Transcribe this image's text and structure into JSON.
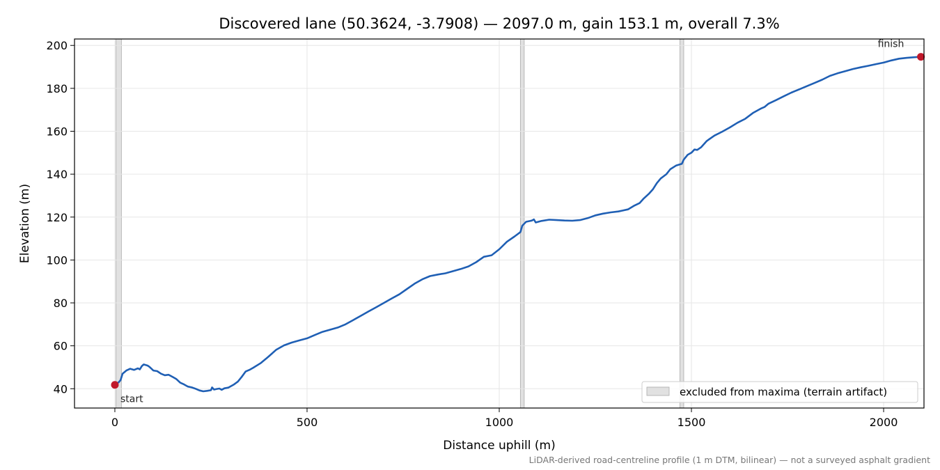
{
  "chart_data": {
    "type": "line",
    "title": "Discovered lane (50.3624, -3.7908) — 2097.0 m, gain 153.1 m, overall 7.3%",
    "xlabel": "Distance uphill (m)",
    "ylabel": "Elevation (m)",
    "xlim": [
      -105,
      2105
    ],
    "ylim": [
      31,
      203
    ],
    "xticks": [
      0,
      500,
      1000,
      1500,
      2000
    ],
    "yticks": [
      40,
      60,
      80,
      100,
      120,
      140,
      160,
      180,
      200
    ],
    "grid": true,
    "series": [
      {
        "name": "",
        "color": "#1f5fb4",
        "points": [
          [
            0,
            41.8
          ],
          [
            10,
            43
          ],
          [
            15,
            44
          ],
          [
            20,
            47
          ],
          [
            30,
            48.5
          ],
          [
            40,
            49.3
          ],
          [
            50,
            48.8
          ],
          [
            60,
            49.5
          ],
          [
            65,
            49
          ],
          [
            70,
            50.5
          ],
          [
            75,
            51.3
          ],
          [
            85,
            50.8
          ],
          [
            90,
            50.2
          ],
          [
            100,
            48.5
          ],
          [
            110,
            48.2
          ],
          [
            120,
            47
          ],
          [
            130,
            46.3
          ],
          [
            140,
            46.5
          ],
          [
            150,
            45.5
          ],
          [
            160,
            44.5
          ],
          [
            170,
            42.8
          ],
          [
            180,
            42
          ],
          [
            190,
            41
          ],
          [
            200,
            40.6
          ],
          [
            210,
            40
          ],
          [
            220,
            39.2
          ],
          [
            230,
            38.8
          ],
          [
            240,
            39
          ],
          [
            250,
            39.3
          ],
          [
            253,
            40.6
          ],
          [
            258,
            39.6
          ],
          [
            265,
            39.9
          ],
          [
            272,
            40.1
          ],
          [
            278,
            39.5
          ],
          [
            285,
            40.2
          ],
          [
            295,
            40.5
          ],
          [
            310,
            42
          ],
          [
            320,
            43.3
          ],
          [
            330,
            45.5
          ],
          [
            340,
            48
          ],
          [
            350,
            48.8
          ],
          [
            360,
            49.8
          ],
          [
            380,
            52
          ],
          [
            400,
            55
          ],
          [
            420,
            58.2
          ],
          [
            440,
            60.2
          ],
          [
            460,
            61.5
          ],
          [
            480,
            62.5
          ],
          [
            500,
            63.5
          ],
          [
            520,
            65
          ],
          [
            540,
            66.5
          ],
          [
            560,
            67.5
          ],
          [
            580,
            68.5
          ],
          [
            600,
            70
          ],
          [
            620,
            72
          ],
          [
            640,
            74
          ],
          [
            660,
            76
          ],
          [
            680,
            78
          ],
          [
            700,
            80
          ],
          [
            720,
            82
          ],
          [
            740,
            84
          ],
          [
            760,
            86.5
          ],
          [
            780,
            89
          ],
          [
            800,
            91
          ],
          [
            820,
            92.5
          ],
          [
            840,
            93.2
          ],
          [
            860,
            93.8
          ],
          [
            880,
            94.8
          ],
          [
            900,
            95.8
          ],
          [
            920,
            97
          ],
          [
            940,
            99
          ],
          [
            960,
            101.5
          ],
          [
            980,
            102.2
          ],
          [
            1000,
            105
          ],
          [
            1020,
            108.5
          ],
          [
            1040,
            111
          ],
          [
            1055,
            113
          ],
          [
            1060,
            116
          ],
          [
            1070,
            117.8
          ],
          [
            1085,
            118.4
          ],
          [
            1090,
            118.9
          ],
          [
            1095,
            117.5
          ],
          [
            1110,
            118.2
          ],
          [
            1130,
            118.8
          ],
          [
            1150,
            118.6
          ],
          [
            1170,
            118.4
          ],
          [
            1190,
            118.3
          ],
          [
            1210,
            118.6
          ],
          [
            1230,
            119.5
          ],
          [
            1250,
            120.8
          ],
          [
            1270,
            121.6
          ],
          [
            1290,
            122.2
          ],
          [
            1310,
            122.6
          ],
          [
            1320,
            123
          ],
          [
            1335,
            123.6
          ],
          [
            1350,
            125.2
          ],
          [
            1365,
            126.5
          ],
          [
            1375,
            128.5
          ],
          [
            1390,
            131
          ],
          [
            1400,
            133
          ],
          [
            1410,
            135.8
          ],
          [
            1420,
            138
          ],
          [
            1435,
            140
          ],
          [
            1445,
            142.3
          ],
          [
            1460,
            144
          ],
          [
            1475,
            144.8
          ],
          [
            1480,
            146.8
          ],
          [
            1490,
            149
          ],
          [
            1500,
            150
          ],
          [
            1508,
            151.5
          ],
          [
            1515,
            151.3
          ],
          [
            1525,
            152.5
          ],
          [
            1540,
            155.5
          ],
          [
            1560,
            158
          ],
          [
            1580,
            159.8
          ],
          [
            1600,
            161.8
          ],
          [
            1620,
            164
          ],
          [
            1640,
            165.8
          ],
          [
            1660,
            168.5
          ],
          [
            1680,
            170.5
          ],
          [
            1690,
            171.3
          ],
          [
            1700,
            172.8
          ],
          [
            1720,
            174.5
          ],
          [
            1740,
            176.3
          ],
          [
            1760,
            178
          ],
          [
            1780,
            179.5
          ],
          [
            1800,
            181
          ],
          [
            1820,
            182.5
          ],
          [
            1840,
            184
          ],
          [
            1860,
            185.8
          ],
          [
            1880,
            187
          ],
          [
            1900,
            188
          ],
          [
            1920,
            189
          ],
          [
            1940,
            189.8
          ],
          [
            1960,
            190.5
          ],
          [
            1980,
            191.3
          ],
          [
            2000,
            192
          ],
          [
            2020,
            193
          ],
          [
            2040,
            193.8
          ],
          [
            2060,
            194.2
          ],
          [
            2080,
            194.5
          ],
          [
            2097,
            194.7
          ]
        ]
      }
    ],
    "markers": [
      {
        "label": "start",
        "x": 0,
        "y": 41.8,
        "color": "#c0182a"
      },
      {
        "label": "finish",
        "x": 2097,
        "y": 194.7,
        "color": "#c0182a"
      }
    ],
    "excluded_bands": [
      [
        3,
        17
      ],
      [
        1055,
        1065
      ],
      [
        1470,
        1480
      ]
    ],
    "legend": {
      "entries": [
        "excluded from maxima (terrain artifact)"
      ],
      "placement": "lower-right"
    },
    "footnote": "LiDAR-derived road-centreline profile (1 m DTM, bilinear) — not a surveyed asphalt gradient"
  }
}
